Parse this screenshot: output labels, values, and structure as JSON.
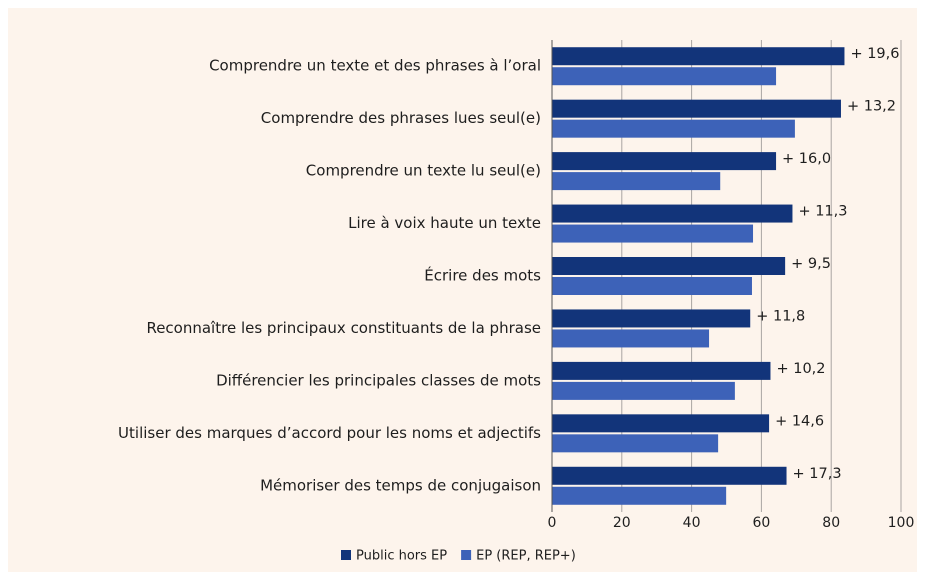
{
  "chart_data": {
    "type": "barh",
    "categories": [
      "Comprendre un texte et des phrases à l’oral",
      "Comprendre des phrases lues seul(e)",
      "Comprendre un texte lu seul(e)",
      "Lire à voix haute un texte",
      "Écrire des mots",
      "Reconnaître les principaux constituants de la phrase",
      "Différencier les principales classes de mots",
      "Utiliser des marques d’accord pour les noms et adjectifs",
      "Mémoriser des temps de conjugaison"
    ],
    "series": [
      {
        "name": "Public hors EP",
        "color": "#12347a",
        "values": [
          83.8,
          82.8,
          64.2,
          68.9,
          66.8,
          56.8,
          62.6,
          62.2,
          67.2
        ]
      },
      {
        "name": "EP (REP, REP+)",
        "color": "#3d62b8",
        "values": [
          64.2,
          69.6,
          48.2,
          57.6,
          57.3,
          45.0,
          52.4,
          47.6,
          49.9
        ]
      }
    ],
    "gap_labels": [
      "+ 19,6",
      "+ 13,2",
      "+ 16,0",
      "+ 11,3",
      "+ 9,5",
      "+ 11,8",
      "+ 10,2",
      "+ 14,6",
      "+ 17,3"
    ],
    "xlim": [
      0,
      100
    ],
    "xticks": [
      0,
      20,
      40,
      60,
      80,
      100
    ],
    "grid": true,
    "legend": "bottom"
  }
}
